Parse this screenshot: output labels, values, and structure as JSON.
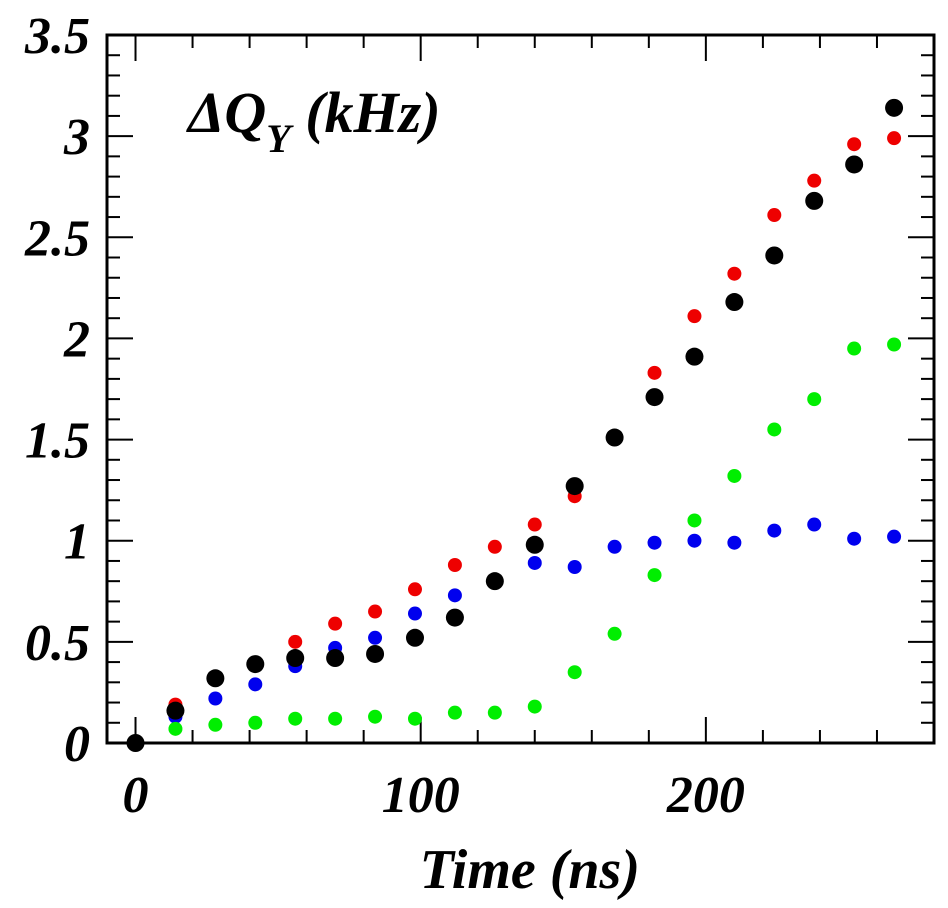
{
  "chart_data": {
    "type": "scatter",
    "title": "",
    "xlabel": "Time (ns)",
    "ylabel": "",
    "xlim": [
      -10,
      280
    ],
    "ylim": [
      0,
      3.5
    ],
    "x_ticks": [
      0,
      100,
      200
    ],
    "y_ticks": [
      0,
      0.5,
      1,
      1.5,
      2,
      2.5,
      3,
      3.5
    ],
    "x_tick_labels": [
      "0",
      "100",
      "200"
    ],
    "y_tick_labels": [
      "0",
      "0.5",
      "1",
      "1.5",
      "2",
      "2.5",
      "3",
      "3.5"
    ],
    "annotation": {
      "delta": "ΔQ",
      "subscript": "Y",
      "unit": " (kHz)"
    },
    "grid": false,
    "x": [
      0,
      14,
      28,
      42,
      56,
      70,
      84,
      98,
      112,
      126,
      140,
      154,
      168,
      182,
      196,
      210,
      224,
      238,
      252,
      266
    ],
    "series": [
      {
        "color": "#ee0000",
        "radius": 7,
        "values": [
          null,
          0.19,
          null,
          null,
          0.5,
          0.59,
          0.65,
          0.76,
          0.88,
          0.97,
          1.08,
          1.22,
          null,
          1.83,
          2.11,
          2.32,
          2.61,
          2.78,
          2.96,
          2.99
        ]
      },
      {
        "color": "#0000ee",
        "radius": 7,
        "values": [
          null,
          0.13,
          0.22,
          0.29,
          0.38,
          0.47,
          0.52,
          0.64,
          0.73,
          null,
          0.89,
          0.87,
          0.97,
          0.99,
          1.0,
          0.99,
          1.05,
          1.08,
          1.01,
          1.02
        ]
      },
      {
        "color": "#00ee00",
        "radius": 7,
        "values": [
          null,
          0.07,
          0.09,
          0.1,
          0.12,
          0.12,
          0.13,
          0.12,
          0.15,
          0.15,
          0.18,
          0.35,
          0.54,
          0.83,
          1.1,
          1.32,
          1.55,
          1.7,
          1.95,
          1.97
        ]
      },
      {
        "color": "#000000",
        "radius": 9,
        "values": [
          0.0,
          0.16,
          0.32,
          0.39,
          0.42,
          0.42,
          0.44,
          0.52,
          0.62,
          0.8,
          0.98,
          1.27,
          1.51,
          1.71,
          1.91,
          2.18,
          2.41,
          2.68,
          2.86,
          3.14
        ]
      }
    ]
  }
}
